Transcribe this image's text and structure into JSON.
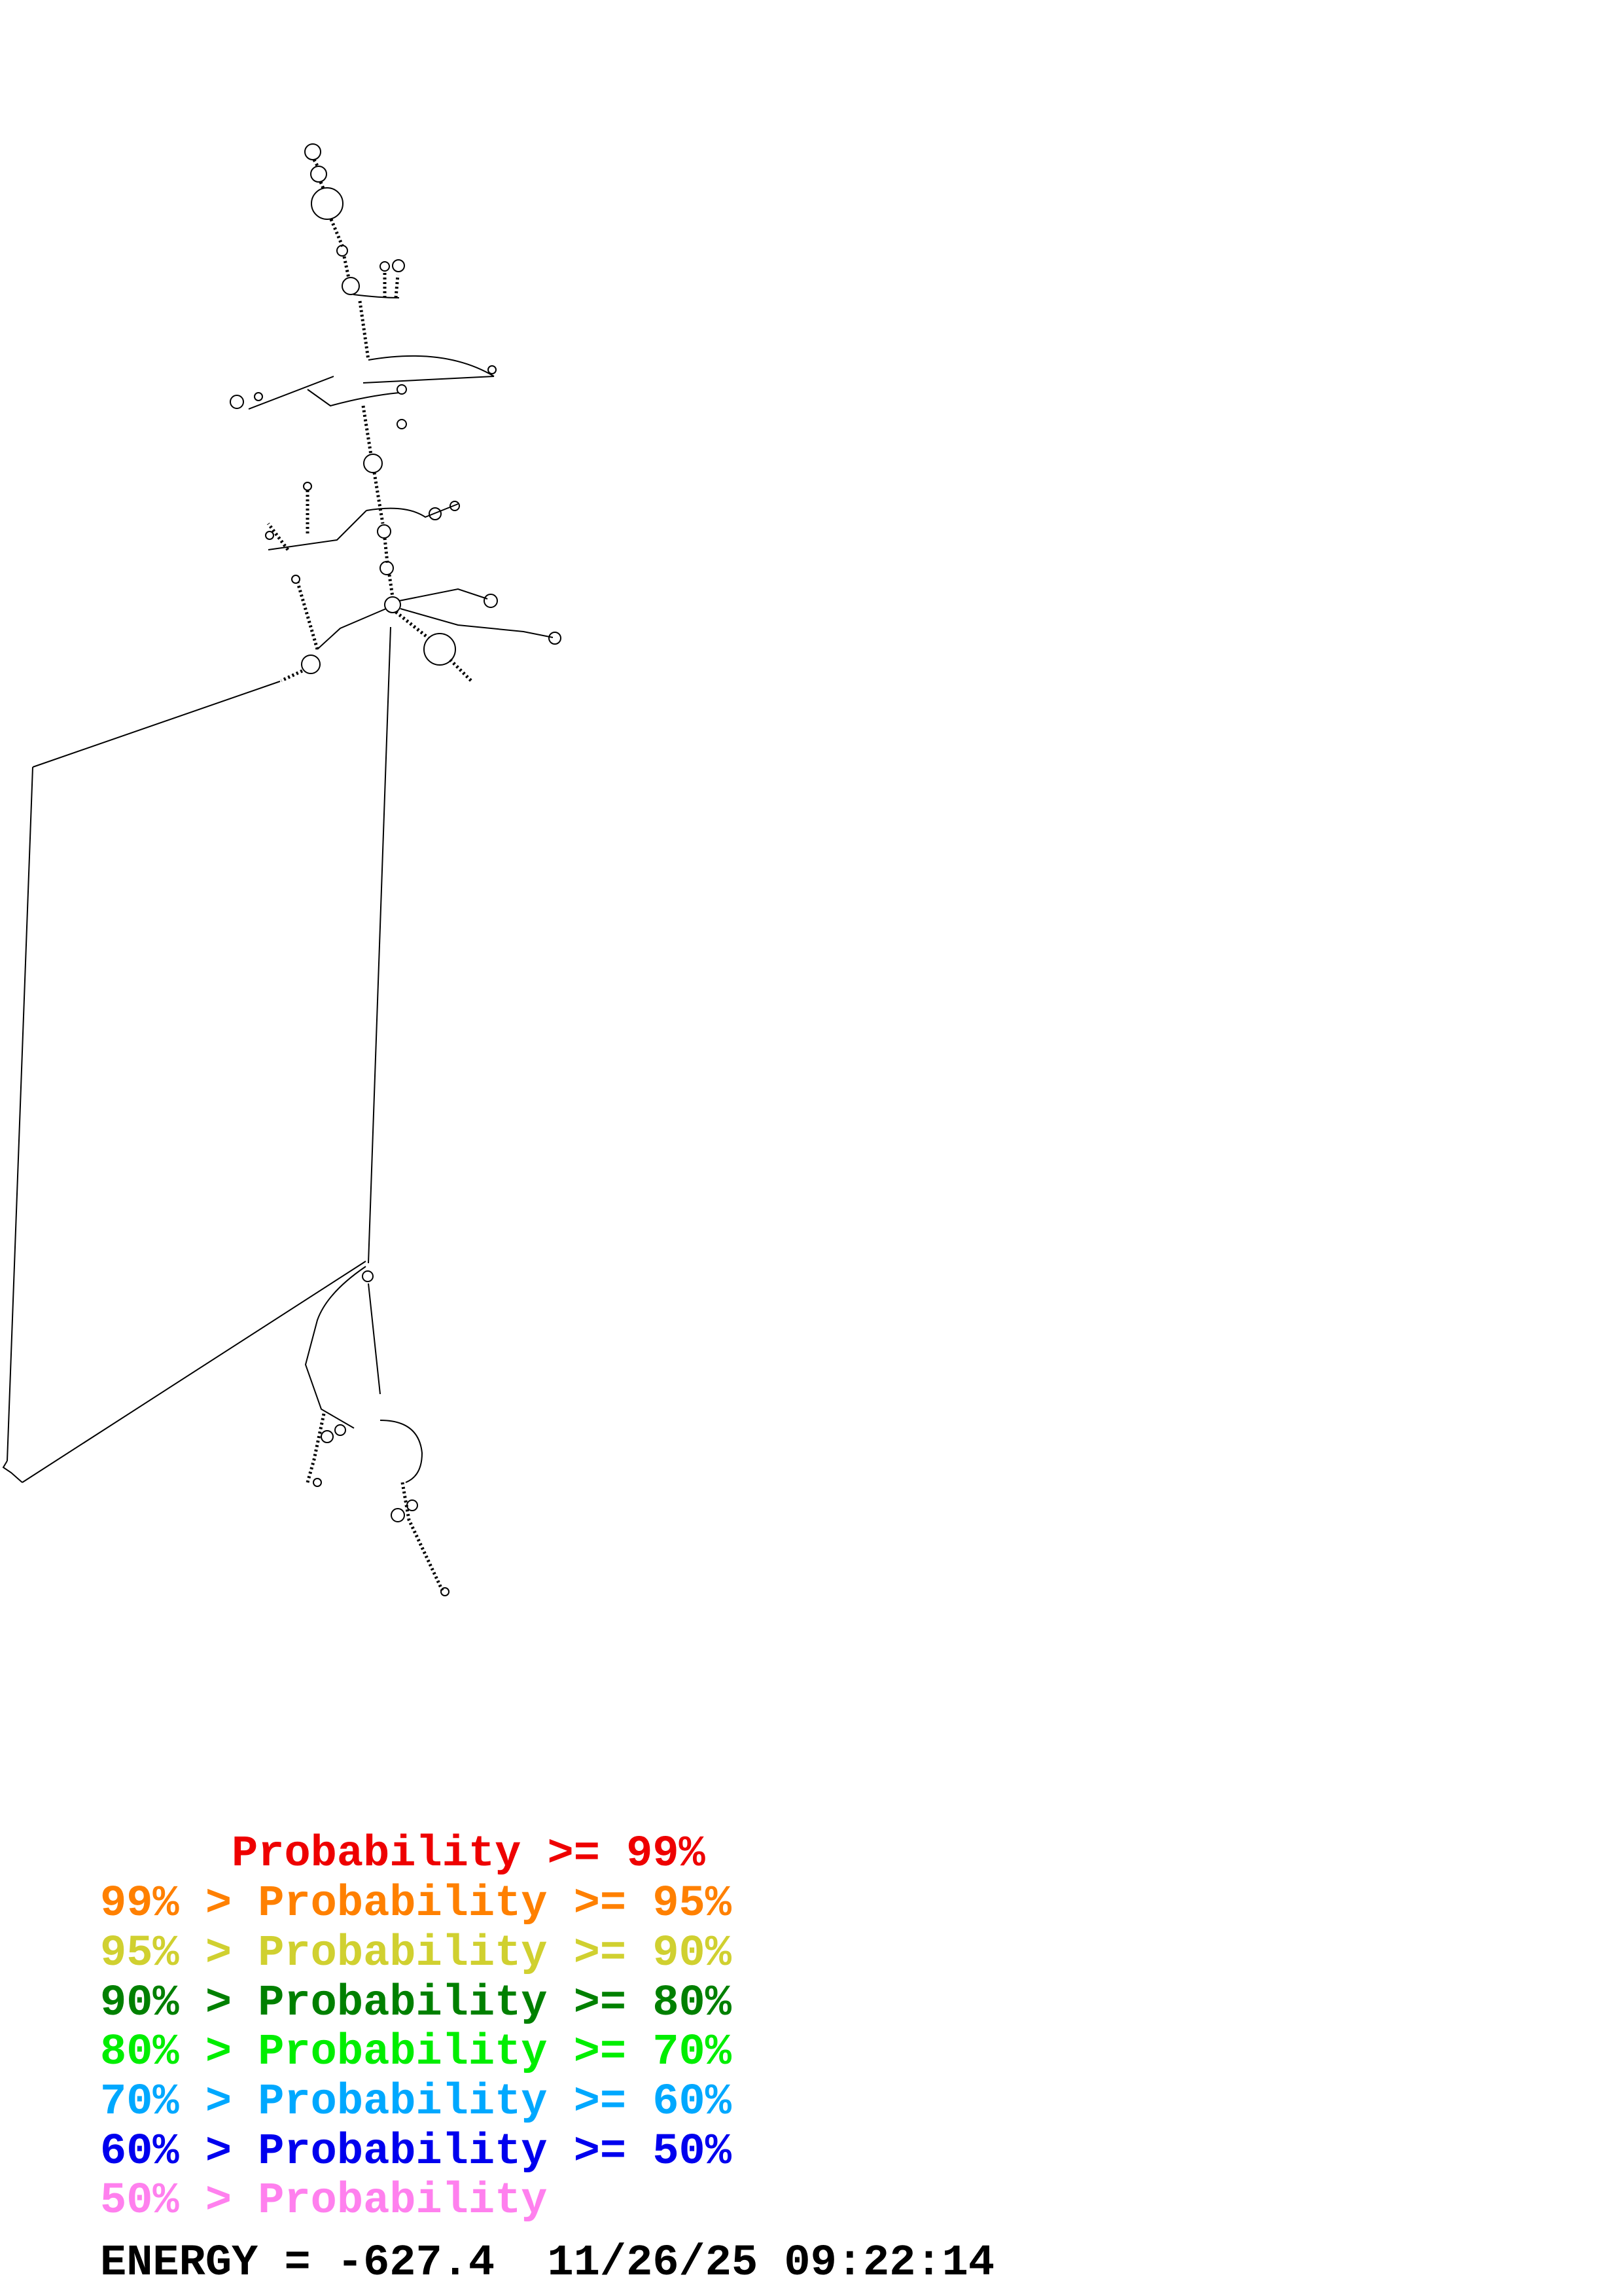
{
  "legend": {
    "rows": [
      {
        "text": "     Probability >= 99%",
        "color": "#ee0000"
      },
      {
        "text": "99% > Probability >= 95%",
        "color": "#ff8000"
      },
      {
        "text": "95% > Probability >= 90%",
        "color": "#d0d030"
      },
      {
        "text": "90% > Probability >= 80%",
        "color": "#008000"
      },
      {
        "text": "80% > Probability >= 70%",
        "color": "#00ee00"
      },
      {
        "text": "70% > Probability >= 60%",
        "color": "#00a8ff"
      },
      {
        "text": "60% > Probability >= 50%",
        "color": "#0000ee"
      },
      {
        "text": "50% > Probability",
        "color": "#ff80ee"
      }
    ]
  },
  "footer": {
    "energy_line": "ENERGY = -627.4  11/26/25 09:22:14"
  }
}
